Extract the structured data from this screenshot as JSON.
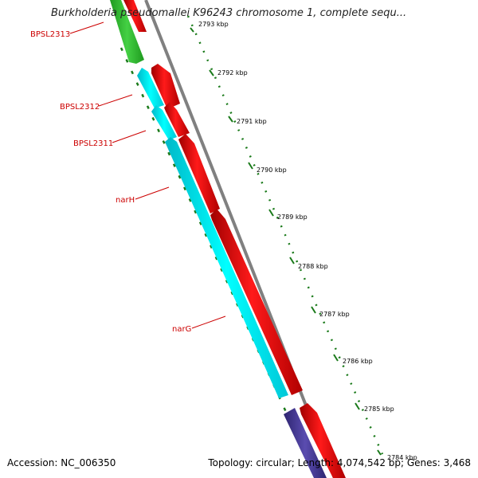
{
  "header": {
    "title": "Burkholderia pseudomallei K96243 chromosome 1, complete sequ..."
  },
  "footer": {
    "accession": "Accession: NC_006350",
    "topology": "Topology: circular; Length: 4,074,542 bp; Genes: 3,468"
  },
  "colors": {
    "cds_forward": "#ff0000",
    "cds_reverse_cyan": "#00ffff",
    "cds_reverse_green": "#33cc33",
    "cds_purple": "#5040a0",
    "backbone": "#808080",
    "tick": "#1a7a1a",
    "gene_label": "#cc0000"
  },
  "ticks": [
    {
      "label": "2793 kbp"
    },
    {
      "label": "2792 kbp"
    },
    {
      "label": "2791 kbp"
    },
    {
      "label": "2790 kbp"
    },
    {
      "label": "2789 kbp"
    },
    {
      "label": "2788 kbp"
    },
    {
      "label": "2787 kbp"
    },
    {
      "label": "2786 kbp"
    },
    {
      "label": "2785 kbp"
    },
    {
      "label": "2784 kbp"
    }
  ],
  "gene_labels": [
    {
      "label": "BPSL2313"
    },
    {
      "label": "BPSL2312"
    },
    {
      "label": "BPSL2311"
    },
    {
      "label": "narH"
    },
    {
      "label": "narG"
    }
  ]
}
